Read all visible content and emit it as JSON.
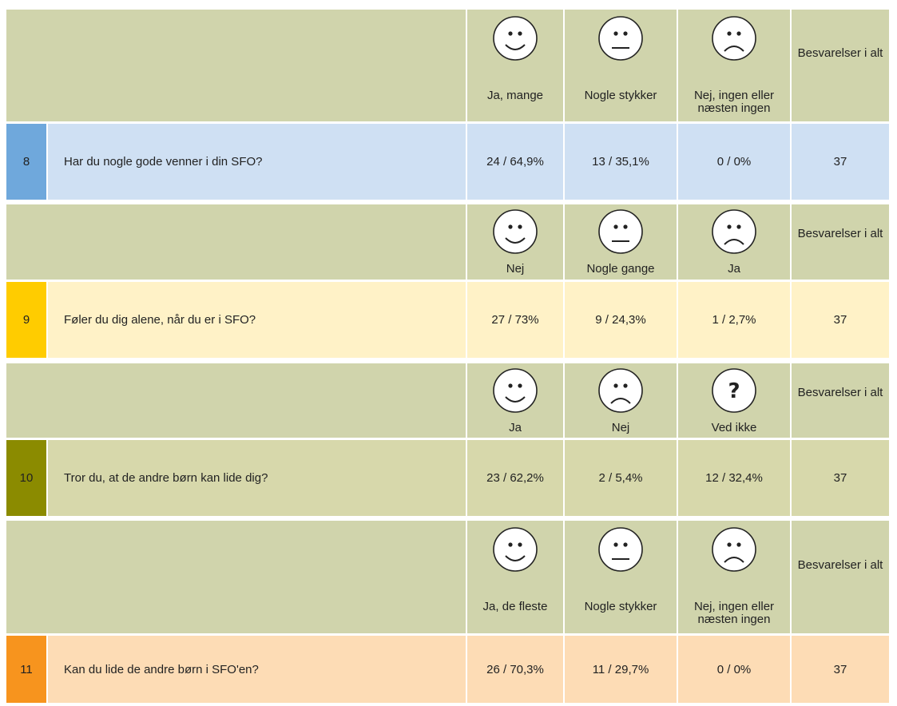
{
  "sections": [
    {
      "header": {
        "options": [
          "Ja, mange",
          "Nogle stykker",
          "Nej, ingen eller næsten ingen"
        ],
        "total": "Besvarelser i alt"
      },
      "number": "8",
      "question": "Har du nogle gode venner i din SFO?",
      "answers": [
        "24 / 64,9%",
        "13 / 35,1%",
        "0 / 0%"
      ],
      "total": "37"
    },
    {
      "header": {
        "options": [
          "Nej",
          "Nogle gange",
          "Ja"
        ],
        "total": "Besvarelser i alt"
      },
      "number": "9",
      "question": "Føler du dig alene, når du er i SFO?",
      "answers": [
        "27 / 73%",
        "9 / 24,3%",
        "1 / 2,7%"
      ],
      "total": "37"
    },
    {
      "header": {
        "options": [
          "Ja",
          "Nej",
          "Ved ikke"
        ],
        "total": "Besvarelser i alt"
      },
      "number": "10",
      "question": "Tror du, at de andre børn kan lide dig?",
      "answers": [
        "23 / 62,2%",
        "2 / 5,4%",
        "12 / 32,4%"
      ],
      "total": "37"
    },
    {
      "header": {
        "options": [
          "Ja, de fleste",
          "Nogle stykker",
          "Nej, ingen eller næsten ingen"
        ],
        "total": "Besvarelser i alt"
      },
      "number": "11",
      "question": "Kan du lide de andre børn i SFO'en?",
      "answers": [
        "26 / 70,3%",
        "11 / 29,7%",
        "0 / 0%"
      ],
      "total": "37"
    }
  ]
}
